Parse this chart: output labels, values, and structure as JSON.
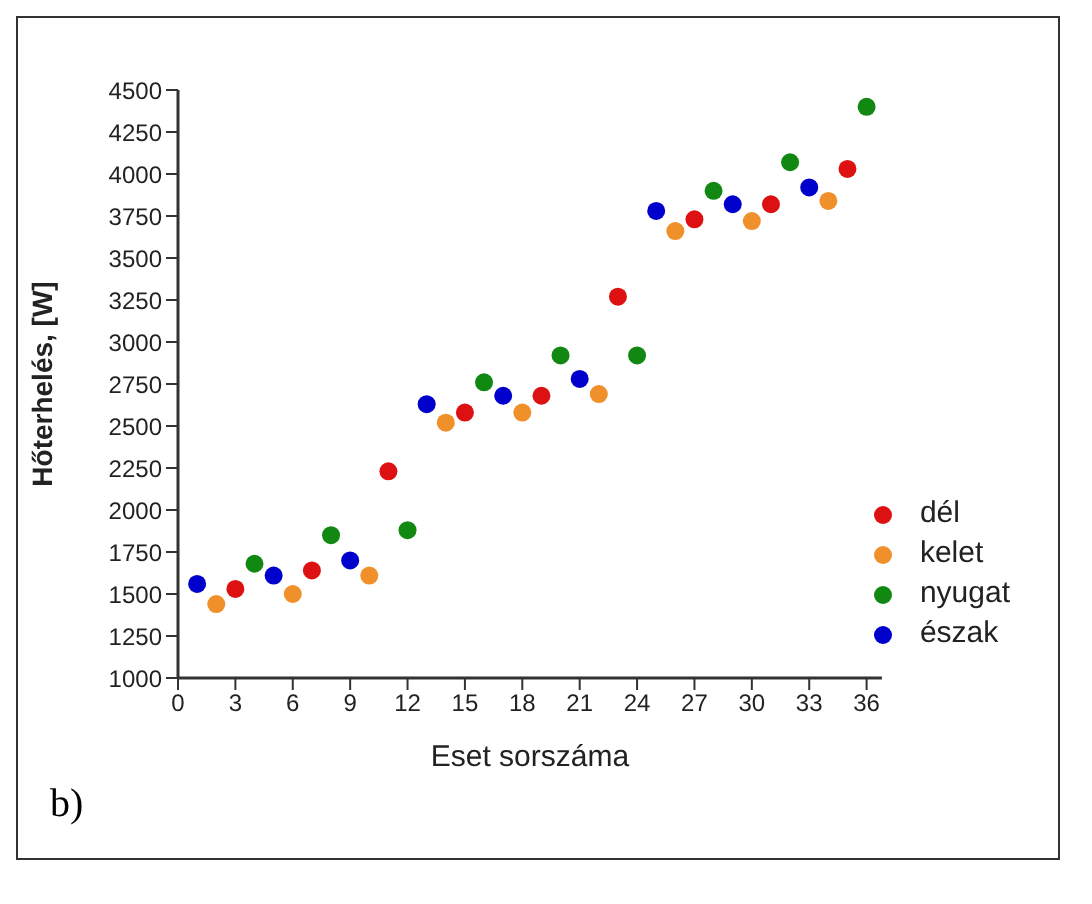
{
  "chart_data": {
    "type": "scatter",
    "xlabel": "Eset sorszáma",
    "ylabel": "Hőterhelés, [W]",
    "annotations": [
      "b)"
    ],
    "xlim": [
      0,
      36.8
    ],
    "xticks": [
      0,
      3,
      6,
      9,
      12,
      15,
      18,
      21,
      24,
      27,
      30,
      33,
      36
    ],
    "ylim": [
      1000,
      4500
    ],
    "yticks": [
      1000,
      1250,
      1500,
      1750,
      2000,
      2250,
      2500,
      2750,
      3000,
      3250,
      3500,
      3750,
      4000,
      4250,
      4500
    ],
    "grid": false,
    "legend": "bottom right",
    "marker": "circle",
    "series": [
      {
        "name": "észak",
        "color": "#0000cc",
        "x": [
          1,
          5,
          9,
          13,
          17,
          21,
          25,
          29,
          33
        ],
        "values": [
          1560,
          1610,
          1700,
          2630,
          2680,
          2780,
          3780,
          3820,
          3920
        ]
      },
      {
        "name": "kelet",
        "color": "#f0902a",
        "x": [
          2,
          6,
          10,
          14,
          18,
          22,
          26,
          30,
          34
        ],
        "values": [
          1440,
          1500,
          1610,
          2520,
          2580,
          2690,
          3660,
          3720,
          3840
        ]
      },
      {
        "name": "dél",
        "color": "#dd1111",
        "x": [
          3,
          7,
          11,
          15,
          19,
          23,
          27,
          31,
          35
        ],
        "values": [
          1530,
          1640,
          2230,
          2580,
          2680,
          3270,
          3730,
          3820,
          4030
        ]
      },
      {
        "name": "nyugat",
        "color": "#118811",
        "x": [
          4,
          8,
          12,
          16,
          20,
          24,
          28,
          32,
          36
        ],
        "values": [
          1680,
          1850,
          1880,
          2760,
          2920,
          2920,
          3900,
          4070,
          4400
        ]
      }
    ]
  }
}
